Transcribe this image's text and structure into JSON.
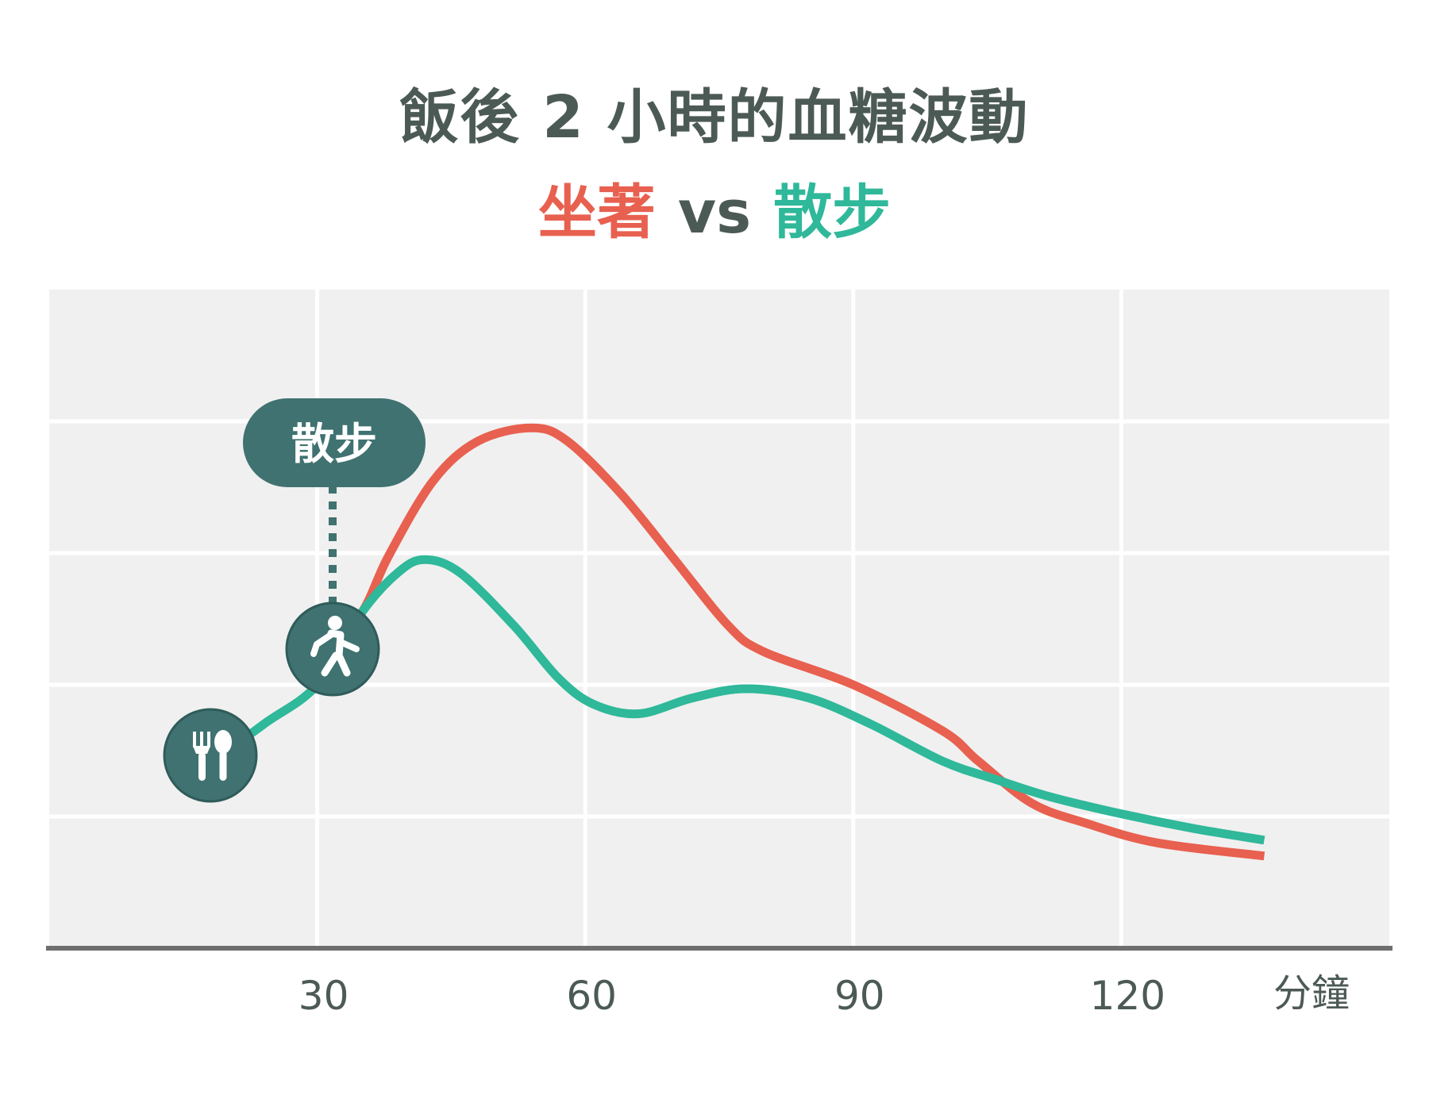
{
  "title": "飯後 2 小時的血糖波動",
  "subtitle": {
    "series_a": "坐著",
    "vs": "vs",
    "series_b": "散步"
  },
  "annotation": {
    "label": "散步",
    "meal_icon": "utensils-icon",
    "walk_icon": "walking-person-icon"
  },
  "colors": {
    "sitting": "#e8604f",
    "walking": "#2fb89a",
    "badge": "#3f7270",
    "title": "#4c5a56",
    "plot_bg": "#f0f0f0"
  },
  "chart_data": {
    "type": "line",
    "title": "飯後 2 小時的血糖波動",
    "xlabel": "分鐘",
    "ylabel": "",
    "xlim": [
      0,
      150
    ],
    "ylim": [
      0,
      5
    ],
    "x_ticks": [
      30,
      60,
      90,
      120
    ],
    "x_tick_labels": [
      "30",
      "60",
      "90",
      "120"
    ],
    "grid": true,
    "series": [
      {
        "name": "坐著",
        "color": "#e8604f",
        "points": [
          [
            31,
            2.25
          ],
          [
            35,
            2.55
          ],
          [
            38,
            2.98
          ],
          [
            43,
            3.55
          ],
          [
            48,
            3.85
          ],
          [
            54,
            3.95
          ],
          [
            58,
            3.85
          ],
          [
            64,
            3.45
          ],
          [
            70,
            2.95
          ],
          [
            76,
            2.45
          ],
          [
            80,
            2.25
          ],
          [
            90,
            2.0
          ],
          [
            100,
            1.65
          ],
          [
            104,
            1.42
          ],
          [
            110,
            1.1
          ],
          [
            116,
            0.95
          ],
          [
            124,
            0.8
          ],
          [
            136,
            0.7
          ]
        ]
      },
      {
        "name": "散步",
        "color": "#2fb89a",
        "points": [
          [
            18,
            1.4
          ],
          [
            24,
            1.7
          ],
          [
            30,
            2.0
          ],
          [
            35,
            2.55
          ],
          [
            39,
            2.85
          ],
          [
            42,
            2.95
          ],
          [
            46,
            2.85
          ],
          [
            52,
            2.45
          ],
          [
            57,
            2.05
          ],
          [
            61,
            1.85
          ],
          [
            66,
            1.78
          ],
          [
            72,
            1.9
          ],
          [
            78,
            1.97
          ],
          [
            85,
            1.9
          ],
          [
            92,
            1.7
          ],
          [
            100,
            1.42
          ],
          [
            106,
            1.28
          ],
          [
            112,
            1.15
          ],
          [
            120,
            1.02
          ],
          [
            128,
            0.91
          ],
          [
            136,
            0.82
          ]
        ]
      }
    ]
  }
}
